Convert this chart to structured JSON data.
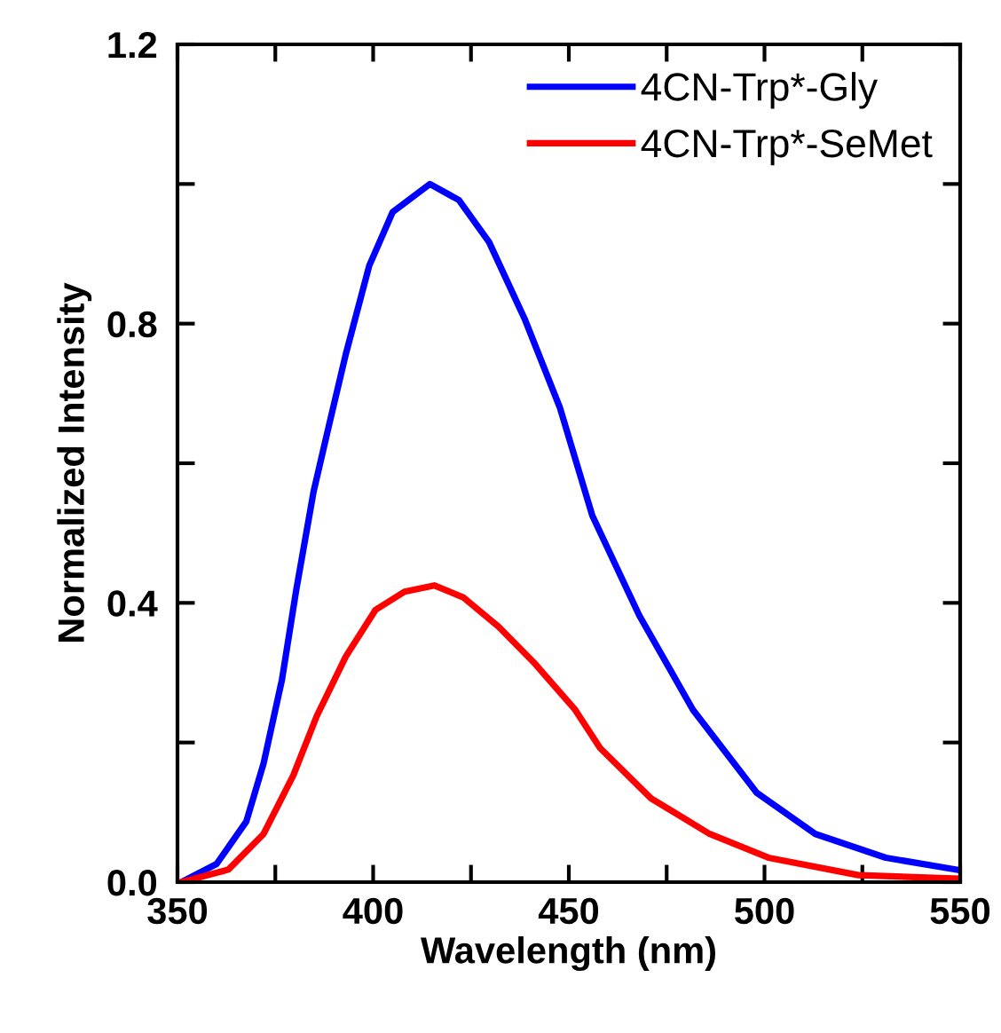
{
  "chart_data": {
    "type": "line",
    "xlabel": "Wavelength (nm)",
    "ylabel": "Normalized Intensity",
    "xlim": [
      350,
      550
    ],
    "ylim": [
      0,
      1.2
    ],
    "xticks": [
      350,
      {
        "value": 375,
        "label": null
      },
      400,
      {
        "value": 425,
        "label": null
      },
      450,
      {
        "value": 475,
        "label": null
      },
      500,
      {
        "value": 525,
        "label": null
      },
      550
    ],
    "yticks": [
      {
        "value": 0,
        "label": "0.0"
      },
      {
        "value": 0.2,
        "label": null
      },
      0.4,
      {
        "value": 0.6,
        "label": null
      },
      0.8,
      {
        "value": 1.0,
        "label": null
      },
      1.2
    ],
    "grid": false,
    "legend": "top right",
    "marker": "none",
    "line_style": "solid",
    "series": [
      {
        "name": "4CN-Trp*-Gly",
        "color": "#0000ff",
        "x": [
          351,
          360,
          367.6,
          372,
          376.7,
          380.3,
          384.8,
          388.7,
          393,
          399,
          405,
          414.5,
          421.9,
          429.6,
          438.7,
          447.7,
          456,
          468,
          481.7,
          498,
          513,
          531,
          549
        ],
        "values": [
          0.0,
          0.026,
          0.087,
          0.17,
          0.29,
          0.417,
          0.56,
          0.654,
          0.756,
          0.883,
          0.96,
          1.0,
          0.977,
          0.917,
          0.807,
          0.68,
          0.525,
          0.382,
          0.247,
          0.128,
          0.069,
          0.035,
          0.018
        ]
      },
      {
        "name": "4CN-Trp*-SeMet",
        "color": "#ff0000",
        "x": [
          351,
          363,
          372,
          379.6,
          385.6,
          393,
          400.6,
          408,
          415.6,
          423,
          432,
          441,
          451.6,
          458,
          471,
          486,
          501,
          524,
          549
        ],
        "values": [
          0.0,
          0.018,
          0.069,
          0.153,
          0.238,
          0.323,
          0.39,
          0.416,
          0.425,
          0.408,
          0.366,
          0.315,
          0.247,
          0.192,
          0.12,
          0.069,
          0.035,
          0.01,
          0.005
        ]
      }
    ]
  }
}
